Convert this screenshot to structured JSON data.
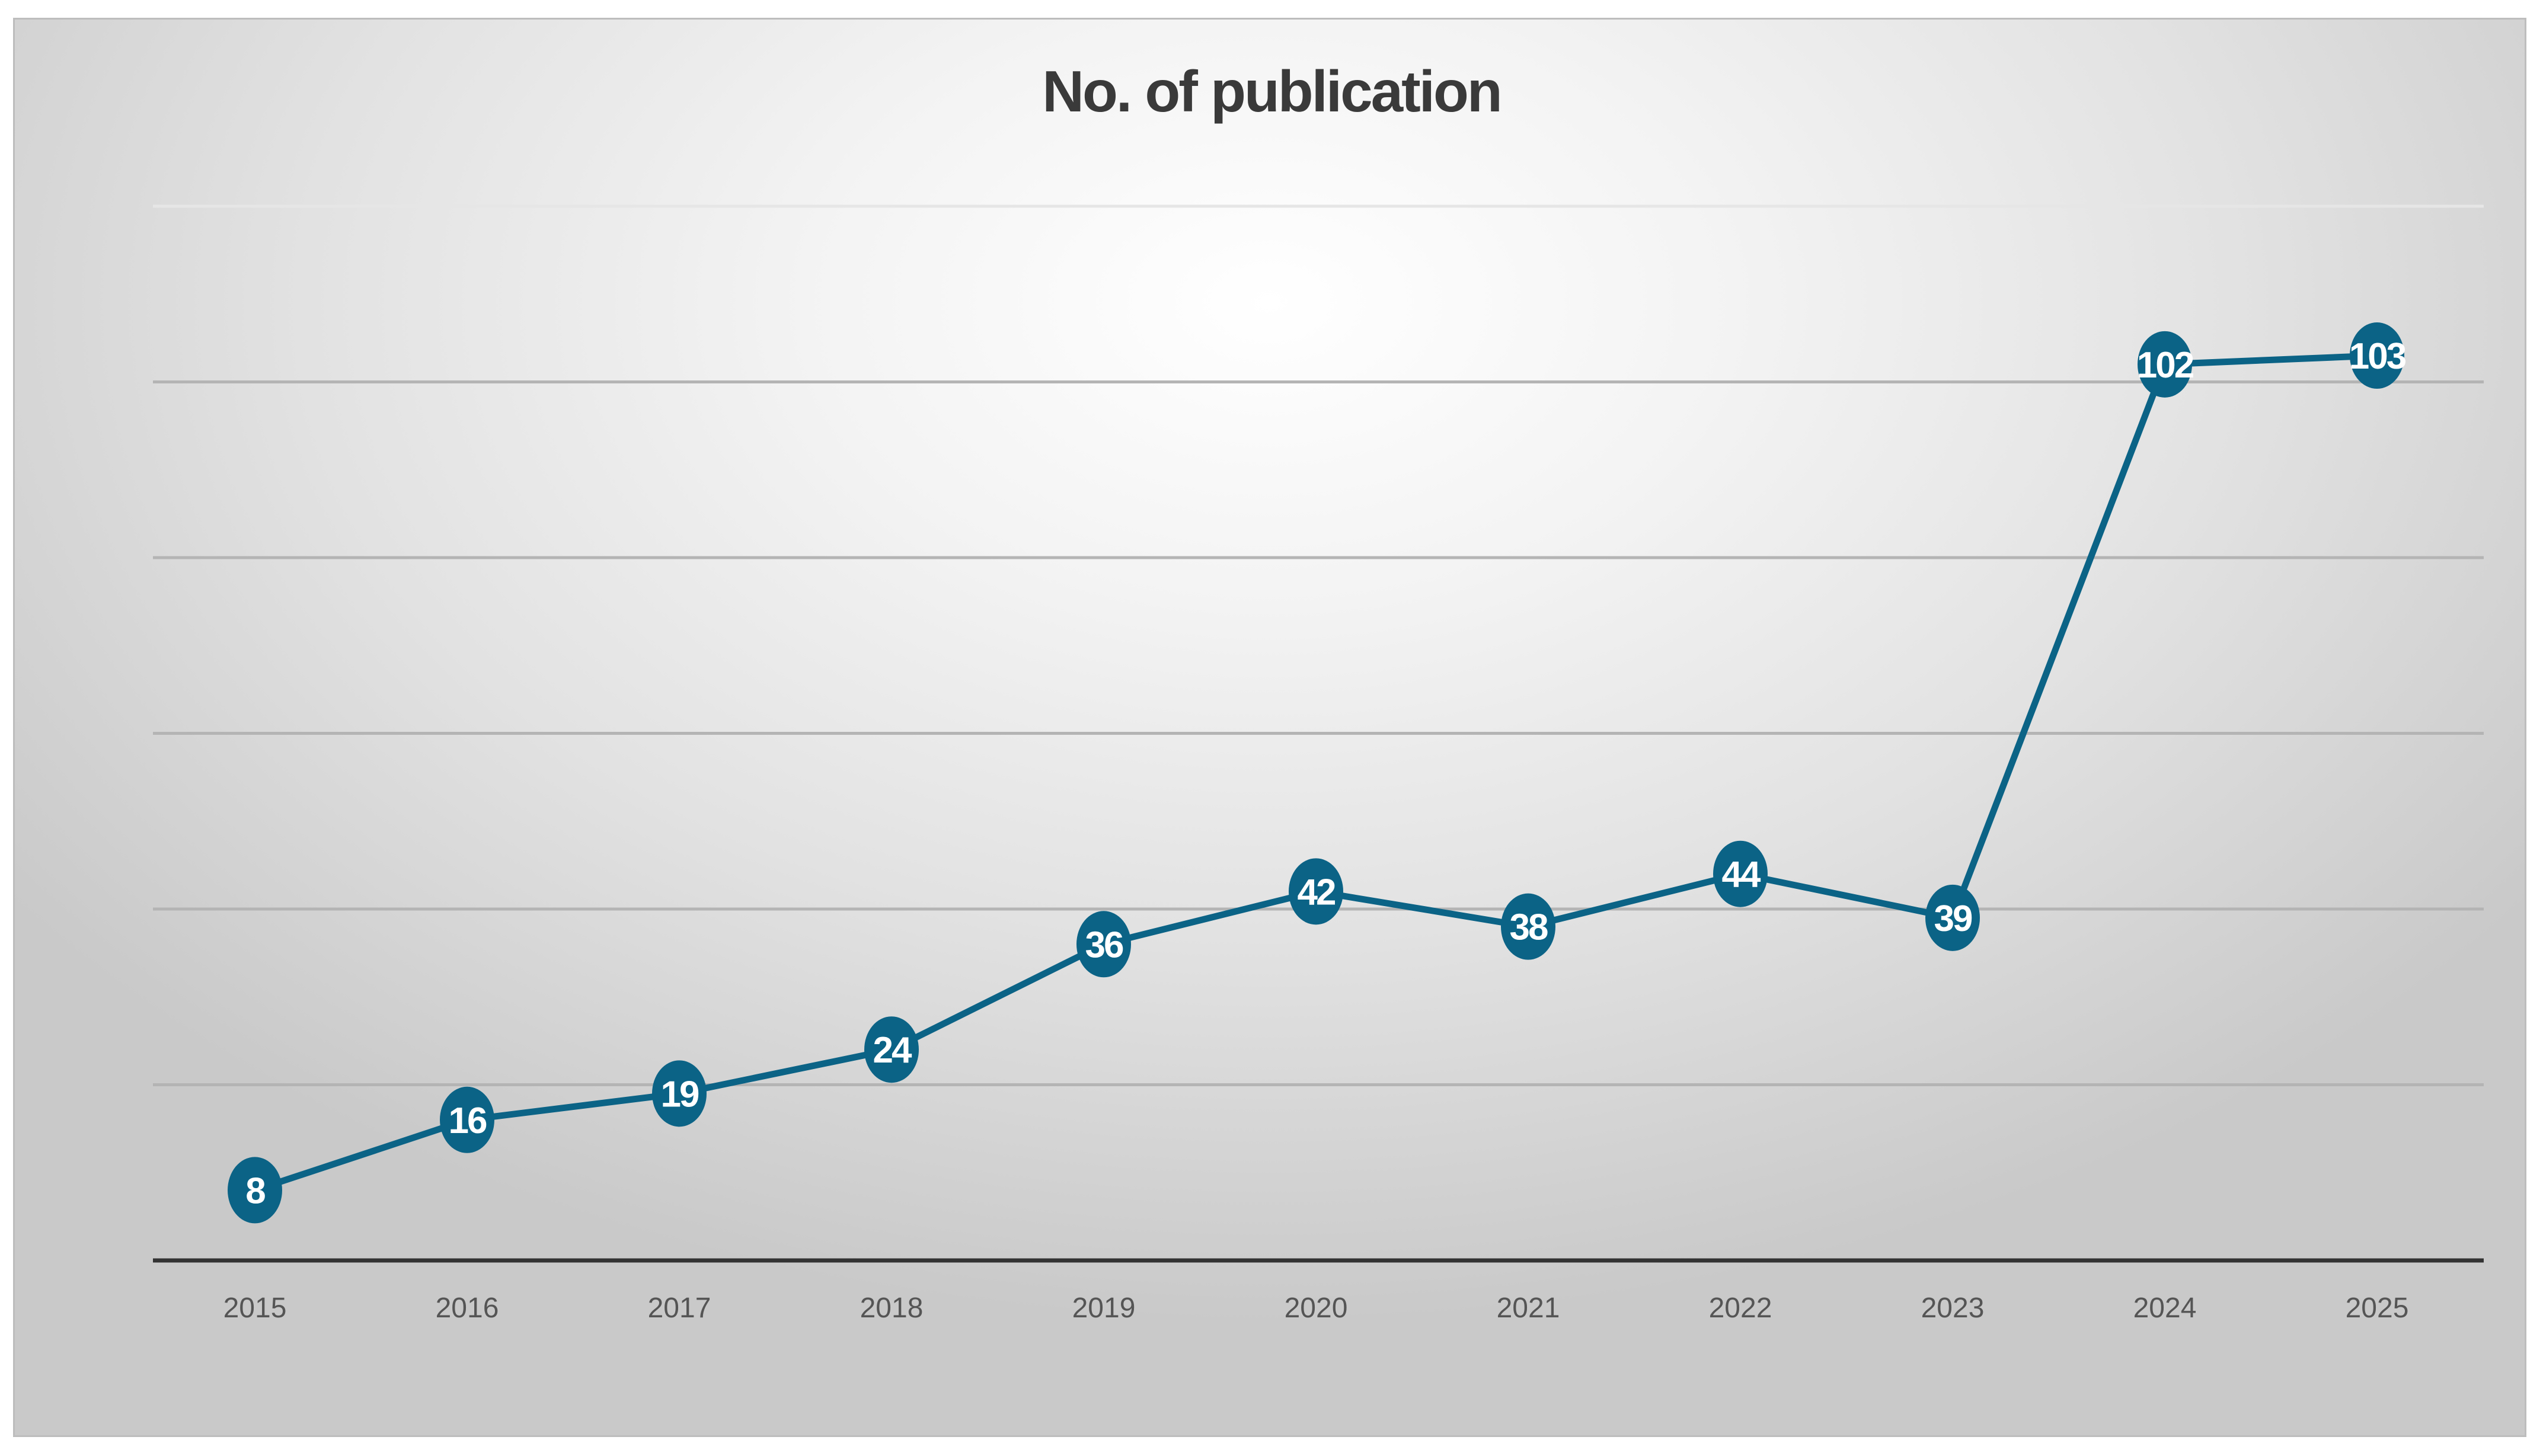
{
  "chart_data": {
    "type": "line",
    "title": "No. of publication",
    "xlabel": "",
    "ylabel": "",
    "categories": [
      "2015",
      "2016",
      "2017",
      "2018",
      "2019",
      "2020",
      "2021",
      "2022",
      "2023",
      "2024",
      "2025"
    ],
    "series": [
      {
        "values": [
          8,
          16,
          19,
          24,
          36,
          42,
          38,
          44,
          39,
          102,
          103
        ],
        "data_labels": [
          "8",
          "16",
          "19",
          "24",
          "36",
          "42",
          "38",
          "44",
          "39",
          "102",
          "103"
        ]
      }
    ],
    "ylim": [
      0,
      120
    ],
    "y_gridline_step": 20,
    "y_tick_labels_visible": false,
    "grid": true,
    "legend": "none",
    "colors": {
      "series": "#0b6386",
      "label_text": "#ffffff"
    }
  }
}
